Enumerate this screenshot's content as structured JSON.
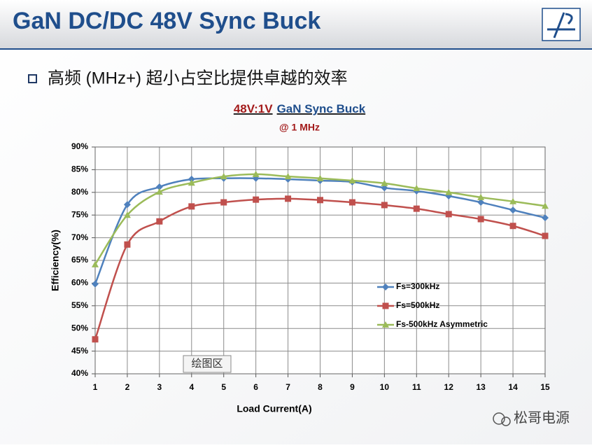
{
  "slide_title": "GaN DC/DC 48V Sync Buck",
  "bullet": "高频 (MHz+)  超小占空比提供卓越的效率",
  "tooltip": "绘图区",
  "watermark": "松哥电源",
  "chart_data": {
    "type": "line",
    "title": [
      "48V:1V",
      "GaN Sync Buck"
    ],
    "subtitle": "@ 1 MHz",
    "x_label": "Load Current(A)",
    "y_label": "Efficiency(%)",
    "x": [
      1,
      2,
      3,
      4,
      5,
      6,
      7,
      8,
      9,
      10,
      11,
      12,
      13,
      14,
      15
    ],
    "xlim": [
      1,
      15
    ],
    "xticks": [
      1,
      2,
      3,
      4,
      5,
      6,
      7,
      8,
      9,
      10,
      11,
      12,
      13,
      14,
      15
    ],
    "ylim": [
      40,
      90
    ],
    "yticks": [
      {
        "value": 40,
        "label": "40%"
      },
      {
        "value": 45,
        "label": "45%"
      },
      {
        "value": 50,
        "label": "50%"
      },
      {
        "value": 55,
        "label": "55%"
      },
      {
        "value": 60,
        "label": "60%"
      },
      {
        "value": 65,
        "label": "65%"
      },
      {
        "value": 70,
        "label": "70%"
      },
      {
        "value": 75,
        "label": "75%"
      },
      {
        "value": 80,
        "label": "80%"
      },
      {
        "value": 85,
        "label": "85%"
      },
      {
        "value": 90,
        "label": "90%"
      }
    ],
    "grid": true,
    "legend": "center-right",
    "series": [
      {
        "name": "Fs=300kHz",
        "color": "#4f81bd",
        "marker": "diamond",
        "values": [
          59.8,
          77.3,
          81.2,
          82.9,
          83.1,
          83.1,
          82.9,
          82.6,
          82.3,
          81.0,
          80.3,
          79.2,
          77.8,
          76.1,
          74.4
        ]
      },
      {
        "name": "Fs=500kHz",
        "color": "#c0504d",
        "marker": "square",
        "values": [
          47.6,
          68.5,
          73.6,
          76.9,
          77.8,
          78.4,
          78.6,
          78.3,
          77.8,
          77.2,
          76.4,
          75.2,
          74.1,
          72.6,
          70.4
        ]
      },
      {
        "name": "Fs-500kHz Asymmetric",
        "color": "#9bbb59",
        "marker": "triangle",
        "values": [
          64.1,
          75.0,
          80.1,
          82.1,
          83.5,
          84.0,
          83.5,
          83.1,
          82.6,
          82.0,
          80.9,
          80.0,
          78.9,
          78.0,
          77.0
        ]
      }
    ]
  }
}
